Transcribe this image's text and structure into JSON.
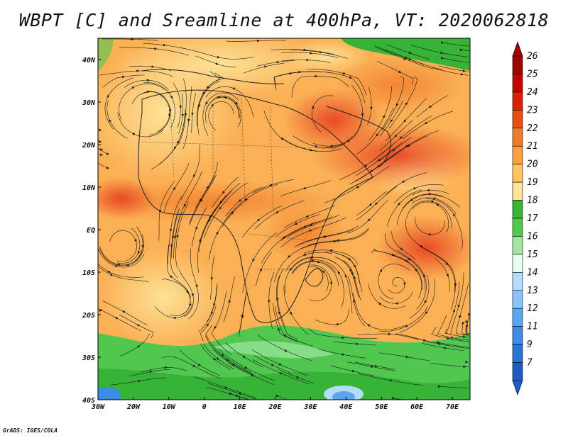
{
  "title": "WBPT [C] and Sreamline at 400hPa, VT: 2020062818",
  "credit": "GrADS: IGES/COLA",
  "map": {
    "variable": "Wet-bulb potential temperature",
    "units": "C",
    "level": "400hPa",
    "valid_time": "2020062818",
    "lon_range": [
      -30,
      75
    ],
    "lat_range": [
      -40,
      45
    ],
    "lat_labels": [
      {
        "value": 40,
        "text": "40N"
      },
      {
        "value": 30,
        "text": "30N"
      },
      {
        "value": 20,
        "text": "20N"
      },
      {
        "value": 10,
        "text": "10N"
      },
      {
        "value": 0,
        "text": "EQ"
      },
      {
        "value": -10,
        "text": "10S"
      },
      {
        "value": -20,
        "text": "20S"
      },
      {
        "value": -30,
        "text": "30S"
      },
      {
        "value": -40,
        "text": "40S"
      }
    ],
    "lon_labels": [
      {
        "value": -30,
        "text": "30W"
      },
      {
        "value": -20,
        "text": "20W"
      },
      {
        "value": -10,
        "text": "10W"
      },
      {
        "value": 0,
        "text": "0"
      },
      {
        "value": 10,
        "text": "10E"
      },
      {
        "value": 20,
        "text": "20E"
      },
      {
        "value": 30,
        "text": "30E"
      },
      {
        "value": 40,
        "text": "40E"
      },
      {
        "value": 50,
        "text": "50E"
      },
      {
        "value": 60,
        "text": "60E"
      },
      {
        "value": 70,
        "text": "70E"
      }
    ]
  },
  "colorbar": {
    "levels": [
      {
        "label": "26",
        "color": "#a50000"
      },
      {
        "label": "25",
        "color": "#c80000"
      },
      {
        "label": "24",
        "color": "#e21e00"
      },
      {
        "label": "23",
        "color": "#f04b14"
      },
      {
        "label": "22",
        "color": "#f5782a"
      },
      {
        "label": "21",
        "color": "#faa03c"
      },
      {
        "label": "20",
        "color": "#fcc65c"
      },
      {
        "label": "19",
        "color": "#fde59a"
      },
      {
        "label": "18",
        "color": "#37b437"
      },
      {
        "label": "17",
        "color": "#50c850"
      },
      {
        "label": "16",
        "color": "#a0e6a0"
      },
      {
        "label": "15",
        "color": "#e6fff0"
      },
      {
        "label": "14",
        "color": "#b4dcff"
      },
      {
        "label": "13",
        "color": "#8cc3fa"
      },
      {
        "label": "12",
        "color": "#5aa5f0"
      },
      {
        "label": "11",
        "color": "#3c8ce6"
      },
      {
        "label": "9",
        "color": "#2873dc"
      },
      {
        "label": "7",
        "color": "#1e5ac8"
      }
    ]
  }
}
